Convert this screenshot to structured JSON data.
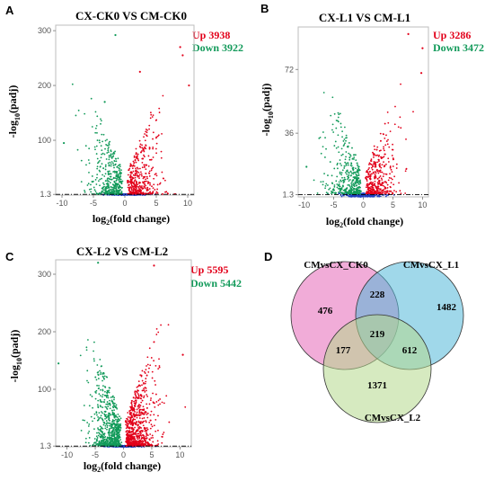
{
  "chart_data": [
    {
      "type": "scatter",
      "panel_label": "A",
      "title": "CX-CK0 VS CM-CK0",
      "xlabel_parts": [
        "log",
        "2",
        "(fold change)"
      ],
      "ylabel_parts": [
        "-log",
        "10",
        "(padj)"
      ],
      "xlim": [
        -11,
        11
      ],
      "ylim": [
        0,
        310
      ],
      "xticks": [
        -10,
        -5,
        0,
        5,
        10
      ],
      "yticks": [
        1.3,
        100,
        200,
        300
      ],
      "threshold_y": 1.3,
      "threshold_label": "1.3",
      "legend": [
        {
          "label": "Up 3938",
          "color": "#e2001a"
        },
        {
          "label": "Down 3922",
          "color": "#129a5a"
        }
      ],
      "series_colors": {
        "up": "#e2001a",
        "down": "#129a5a",
        "ns": "#1f3fbf"
      },
      "up_count": 3938,
      "down_count": 3922,
      "outliers": [
        {
          "x": -1.5,
          "y": 292,
          "group": "down"
        },
        {
          "x": -3.2,
          "y": 170,
          "group": "down"
        },
        {
          "x": -9.7,
          "y": 95,
          "group": "down"
        },
        {
          "x": 2.4,
          "y": 225,
          "group": "up"
        },
        {
          "x": 9.2,
          "y": 255,
          "group": "up"
        },
        {
          "x": 10.2,
          "y": 200,
          "group": "up"
        },
        {
          "x": 8.8,
          "y": 270,
          "group": "up"
        }
      ]
    },
    {
      "type": "scatter",
      "panel_label": "B",
      "title": "CX-L1 VS CM-L1",
      "xlabel_parts": [
        "log",
        "2",
        "(fold change)"
      ],
      "ylabel_parts": [
        "-log",
        "10",
        "(padj)"
      ],
      "xlim": [
        -11,
        11
      ],
      "ylim": [
        0,
        96
      ],
      "xticks": [
        -10,
        -5,
        0,
        5,
        10
      ],
      "yticks": [
        1.3,
        36,
        72
      ],
      "threshold_y": 1.3,
      "threshold_label": "1.3",
      "legend": [
        {
          "label": "Up 3286",
          "color": "#e2001a"
        },
        {
          "label": "Down 3472",
          "color": "#129a5a"
        }
      ],
      "series_colors": {
        "up": "#e2001a",
        "down": "#129a5a",
        "ns": "#1f3fbf"
      },
      "up_count": 3286,
      "down_count": 3472,
      "outliers": [
        {
          "x": 7.6,
          "y": 92,
          "group": "up"
        },
        {
          "x": 10,
          "y": 84,
          "group": "up"
        },
        {
          "x": 9.8,
          "y": 70,
          "group": "up"
        },
        {
          "x": -9.6,
          "y": 17,
          "group": "down"
        }
      ]
    },
    {
      "type": "scatter",
      "panel_label": "C",
      "title": "CX-L2 VS CM-L2",
      "xlabel_parts": [
        "log",
        "2",
        "(fold change)"
      ],
      "ylabel_parts": [
        "-log",
        "10",
        "(padj)"
      ],
      "xlim": [
        -12,
        12
      ],
      "ylim": [
        0,
        325
      ],
      "xticks": [
        -10,
        -5,
        0,
        5,
        10
      ],
      "yticks": [
        1.3,
        100,
        200,
        300
      ],
      "threshold_y": 1.3,
      "threshold_label": "1.3",
      "legend": [
        {
          "label": "Up 5595",
          "color": "#e2001a"
        },
        {
          "label": "Down 5442",
          "color": "#129a5a"
        }
      ],
      "series_colors": {
        "up": "#e2001a",
        "down": "#129a5a",
        "ns": "#1f3fbf"
      },
      "up_count": 5595,
      "down_count": 5442,
      "outliers": [
        {
          "x": -11.5,
          "y": 145,
          "group": "down"
        },
        {
          "x": -4.5,
          "y": 320,
          "group": "down"
        },
        {
          "x": 5.4,
          "y": 315,
          "group": "up"
        },
        {
          "x": 10.5,
          "y": 160,
          "group": "up"
        }
      ]
    },
    {
      "type": "venn",
      "panel_label": "D",
      "sets": [
        {
          "name": "CMvsCX_CK0",
          "color": "#e668b8"
        },
        {
          "name": "CMvsCX_L1",
          "color": "#52b8d8"
        },
        {
          "name": "CMvsCX_L2",
          "color": "#b4d98c"
        }
      ],
      "regions": [
        {
          "sets": [
            "CMvsCX_CK0"
          ],
          "value": 476
        },
        {
          "sets": [
            "CMvsCX_L1"
          ],
          "value": 1482
        },
        {
          "sets": [
            "CMvsCX_L2"
          ],
          "value": 1371
        },
        {
          "sets": [
            "CMvsCX_CK0",
            "CMvsCX_L1"
          ],
          "value": 228
        },
        {
          "sets": [
            "CMvsCX_CK0",
            "CMvsCX_L2"
          ],
          "value": 177
        },
        {
          "sets": [
            "CMvsCX_L1",
            "CMvsCX_L2"
          ],
          "value": 612
        },
        {
          "sets": [
            "CMvsCX_CK0",
            "CMvsCX_L1",
            "CMvsCX_L2"
          ],
          "value": 219
        }
      ]
    }
  ]
}
